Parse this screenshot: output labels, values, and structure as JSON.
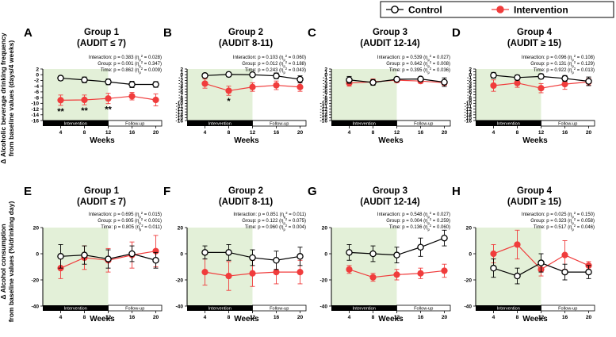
{
  "legend": {
    "control": "Control",
    "intervention": "Intervention"
  },
  "colors": {
    "control": "#000000",
    "intervention": "#f03c3c",
    "shade": "#e3f0d8"
  },
  "y_labels": {
    "top": [
      "Δ Alcoholic beverage drinking frequency",
      "from baseline values (days/4 weeks)"
    ],
    "bottom": [
      "Δ Alcohol consumption",
      "from baseline values (%/drinking day)"
    ]
  },
  "phases": {
    "intervention": "Intervention",
    "followup": "Follow-up"
  },
  "chart_data": [
    {
      "letter": "A",
      "type": "line",
      "title": [
        "Group 1",
        "(AUDIT ≤ 7)"
      ],
      "stats": [
        "Interaction: p = 0.383 (ηp2 = 0.028)",
        "Group: p = 0.001 (ηp2 = 0.347)",
        "Time: p = 0.862 (ηp2 = 0.009)"
      ],
      "x": [
        4,
        8,
        12,
        16,
        20
      ],
      "xlabel": "Weeks",
      "ylim": [
        -16,
        2
      ],
      "yticks": [
        "-16",
        "-14",
        "-12",
        "-10",
        "-8",
        "-6",
        "-4",
        "-2",
        "0",
        "2"
      ],
      "series": [
        {
          "name": "Control",
          "values": [
            -1.2,
            -1.8,
            -2.5,
            -3.4,
            -3.4
          ],
          "err": [
            0.8,
            1.0,
            1.0,
            1.1,
            1.0
          ]
        },
        {
          "name": "Intervention",
          "values": [
            -8.9,
            -8.8,
            -8.3,
            -7.5,
            -8.8
          ],
          "err": [
            1.8,
            1.7,
            1.8,
            1.3,
            2.1
          ]
        }
      ],
      "annotations": [
        {
          "x": 4,
          "text": "**"
        },
        {
          "x": 8,
          "text": "**"
        },
        {
          "x": 12,
          "text": "**"
        }
      ]
    },
    {
      "letter": "B",
      "type": "line",
      "title": [
        "Group 2",
        "(AUDIT 8-11)"
      ],
      "stats": [
        "Interaction: p = 0.103 (ηp2 = 0.060)",
        "Group: p = 0.012 (ηp2 = 0.188)",
        "Time: p = 0.243 (ηp2 = 0.043)"
      ],
      "x": [
        4,
        8,
        12,
        16,
        20
      ],
      "xlabel": "Weeks",
      "ylim": [
        -16,
        2
      ],
      "yticks": [
        "-16",
        "-15",
        "-14",
        "-13",
        "-12",
        "-11",
        "-10",
        "-9",
        "-8",
        "-7",
        "-6",
        "-5",
        "-4",
        "-3",
        "-2",
        "-1",
        "0",
        "1",
        "2"
      ],
      "series": [
        {
          "name": "Control",
          "values": [
            -0.3,
            0.1,
            0.0,
            -0.4,
            -1.6
          ],
          "err": [
            0.8,
            0.8,
            0.8,
            1.0,
            1.2
          ]
        },
        {
          "name": "Intervention",
          "values": [
            -3.1,
            -5.6,
            -4.3,
            -3.7,
            -4.3
          ],
          "err": [
            1.6,
            1.6,
            1.5,
            1.5,
            1.5
          ]
        }
      ],
      "annotations": [
        {
          "x": 8,
          "text": "*"
        }
      ]
    },
    {
      "letter": "C",
      "type": "line",
      "title": [
        "Group 3",
        "(AUDIT 12-14)"
      ],
      "stats": [
        "Interaction: p = 0.539 (ηp2 = 0.027)",
        "Group: p = 0.642 (ηp2 = 0.008)",
        "Time: p = 0.395 (ηp2 = 0.036)"
      ],
      "x": [
        4,
        8,
        12,
        16,
        20
      ],
      "xlabel": "Weeks",
      "ylim": [
        -16,
        2
      ],
      "yticks": [
        "-16",
        "-15",
        "-14",
        "-13",
        "-12",
        "-11",
        "-10",
        "-9",
        "-8",
        "-7",
        "-6",
        "-5",
        "-4",
        "-3",
        "-2",
        "-1",
        "0",
        "1",
        "2"
      ],
      "series": [
        {
          "name": "Control",
          "values": [
            -1.8,
            -2.7,
            -1.6,
            -1.5,
            -2.6
          ],
          "err": [
            1.2,
            1.0,
            0.8,
            0.6,
            1.5
          ]
        },
        {
          "name": "Intervention",
          "values": [
            -2.9,
            -2.5,
            -1.9,
            -2.2,
            -2.8
          ],
          "err": [
            1.1,
            1.0,
            0.8,
            0.8,
            0.9
          ]
        }
      ],
      "annotations": []
    },
    {
      "letter": "D",
      "type": "line",
      "title": [
        "Group 4",
        "(AUDIT ≥ 15)"
      ],
      "stats": [
        "Interaction: p = 0.096 (ηp2 = 0.108)",
        "Group: p = 0.131 (ηp2 = 0.129)",
        "Time: p = 0.922 (ηp2 = 0.013)"
      ],
      "x": [
        4,
        8,
        12,
        16,
        20
      ],
      "xlabel": "Weeks",
      "ylim": [
        -16,
        2
      ],
      "yticks": [
        "-16",
        "-15",
        "-14",
        "-13",
        "-12",
        "-11",
        "-10",
        "-9",
        "-8",
        "-7",
        "-6",
        "-5",
        "-4",
        "-3",
        "-2",
        "-1",
        "0",
        "1",
        "2"
      ],
      "series": [
        {
          "name": "Control",
          "values": [
            -0.2,
            -1.0,
            -0.6,
            -1.3,
            -2.3
          ],
          "err": [
            1.0,
            0.9,
            0.9,
            1.0,
            1.5
          ]
        },
        {
          "name": "Intervention",
          "values": [
            -3.8,
            -2.9,
            -4.7,
            -3.3,
            -2.5
          ],
          "err": [
            2.0,
            1.5,
            1.6,
            1.8,
            1.2
          ]
        }
      ],
      "annotations": []
    },
    {
      "letter": "E",
      "type": "line",
      "title": [
        "Group 1",
        "(AUDIT ≤ 7)"
      ],
      "stats": [
        "Interaction: p = 0.695 (ηp2 = 0.015)",
        "Group: p = 0.905 (ηp2 < 0.001)",
        "Time: p = 0.805 (ηp2 = 0.011)"
      ],
      "x": [
        4,
        8,
        12,
        16,
        20
      ],
      "xlabel": "Weeks",
      "ylim": [
        -40,
        20
      ],
      "yticks": [
        "-40",
        "-20",
        "0",
        "20"
      ],
      "series": [
        {
          "name": "Control",
          "values": [
            -2,
            -1,
            -4,
            0,
            -5
          ],
          "err": [
            9,
            7,
            7,
            6,
            6
          ]
        },
        {
          "name": "Intervention",
          "values": [
            -11,
            -3,
            -5,
            -1,
            2
          ],
          "err": [
            8,
            9,
            9,
            10,
            12
          ]
        }
      ],
      "annotations": []
    },
    {
      "letter": "F",
      "type": "line",
      "title": [
        "Group 2",
        "(AUDIT 8-11)"
      ],
      "stats": [
        "Interaction: p = 0.851 (ηp2 = 0.011)",
        "Group: p = 0.122 (ηp2 = 0.075)",
        "Time: p = 0.960 (ηp2 = 0.004)"
      ],
      "x": [
        4,
        8,
        12,
        16,
        20
      ],
      "xlabel": "Weeks",
      "ylim": [
        -40,
        20
      ],
      "yticks": [
        "-40",
        "-20",
        "0",
        "20"
      ],
      "series": [
        {
          "name": "Control",
          "values": [
            1,
            1,
            -3,
            -5,
            -2
          ],
          "err": [
            5,
            6,
            6,
            7,
            7
          ]
        },
        {
          "name": "Intervention",
          "values": [
            -14,
            -17,
            -15,
            -14,
            -14
          ],
          "err": [
            10,
            11,
            10,
            9,
            9
          ]
        }
      ],
      "annotations": []
    },
    {
      "letter": "G",
      "type": "line",
      "title": [
        "Group 3",
        "(AUDIT 12-14)"
      ],
      "stats": [
        "Interaction: p = 0.548 (ηp2 = 0.027)",
        "Group: p = 0.004 (ηp2 = 0.259)",
        "Time: p = 0.136 (ηp2 = 0.060)"
      ],
      "x": [
        4,
        8,
        12,
        16,
        20
      ],
      "xlabel": "Weeks",
      "ylim": [
        -40,
        20
      ],
      "yticks": [
        "-40",
        "-20",
        "0",
        "20"
      ],
      "series": [
        {
          "name": "Control",
          "values": [
            1,
            0,
            -1,
            5,
            12
          ],
          "err": [
            6,
            6,
            6,
            7,
            6
          ]
        },
        {
          "name": "Intervention",
          "values": [
            -12,
            -18,
            -16,
            -15,
            -13
          ],
          "err": [
            3,
            3,
            4,
            4,
            5
          ]
        }
      ],
      "annotations": []
    },
    {
      "letter": "H",
      "type": "line",
      "title": [
        "Group 4",
        "(AUDIT ≥ 15)"
      ],
      "stats": [
        "Interaction: p = 0.025 (ηp2 = 0.150)",
        "Group: p = 0.323 (ηp2 = 0.058)",
        "Time: p = 0.517 (ηp2 = 0.046)"
      ],
      "x": [
        4,
        8,
        12,
        16,
        20
      ],
      "xlabel": "Weeks",
      "ylim": [
        -40,
        20
      ],
      "yticks": [
        "-40",
        "-20",
        "0",
        "20"
      ],
      "series": [
        {
          "name": "Control",
          "values": [
            -11,
            -17,
            -7,
            -14,
            -14
          ],
          "err": [
            7,
            6,
            7,
            6,
            5
          ]
        },
        {
          "name": "Intervention",
          "values": [
            0,
            7,
            -12,
            -1,
            -9
          ],
          "err": [
            7,
            11,
            5,
            11,
            3
          ]
        }
      ],
      "annotations": []
    }
  ]
}
